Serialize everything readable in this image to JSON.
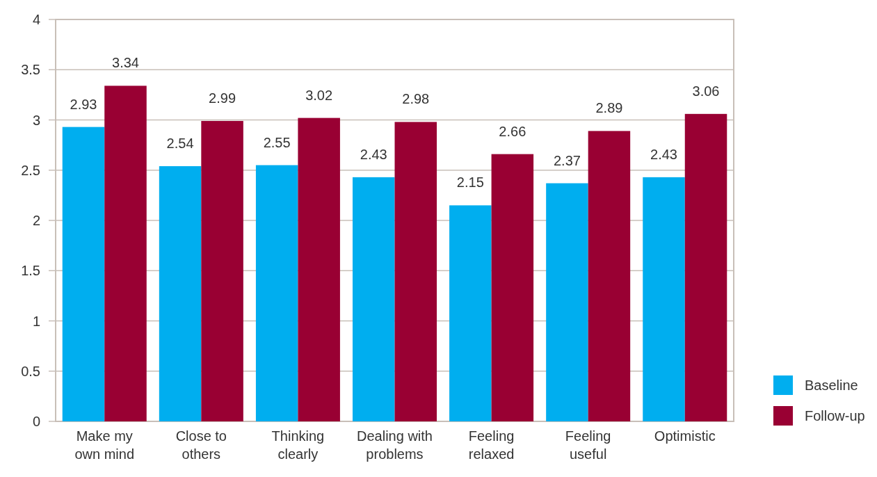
{
  "chart_data": {
    "type": "bar",
    "categories": [
      "Make my own mind",
      "Close to others",
      "Thinking clearly",
      "Dealing with problems",
      "Feeling relaxed",
      "Feeling useful",
      "Optimistic"
    ],
    "series": [
      {
        "name": "Baseline",
        "color": "#00aeef",
        "values": [
          2.93,
          2.54,
          2.55,
          2.43,
          2.15,
          2.37,
          2.43
        ]
      },
      {
        "name": "Follow-up",
        "color": "#990033",
        "values": [
          3.34,
          2.99,
          3.02,
          2.98,
          2.66,
          2.89,
          3.06
        ]
      }
    ],
    "ylim": [
      0,
      4
    ],
    "yticks": [
      0,
      {
        "value": 0.5,
        "label": "0.5"
      },
      1,
      {
        "value": 1.5,
        "label": "1.5"
      },
      2,
      {
        "value": 2.5,
        "label": "2.5"
      },
      3,
      {
        "value": 3.5,
        "label": "3.5"
      },
      4
    ],
    "grid": "y",
    "legend": "bottom right",
    "data_labels": true
  }
}
